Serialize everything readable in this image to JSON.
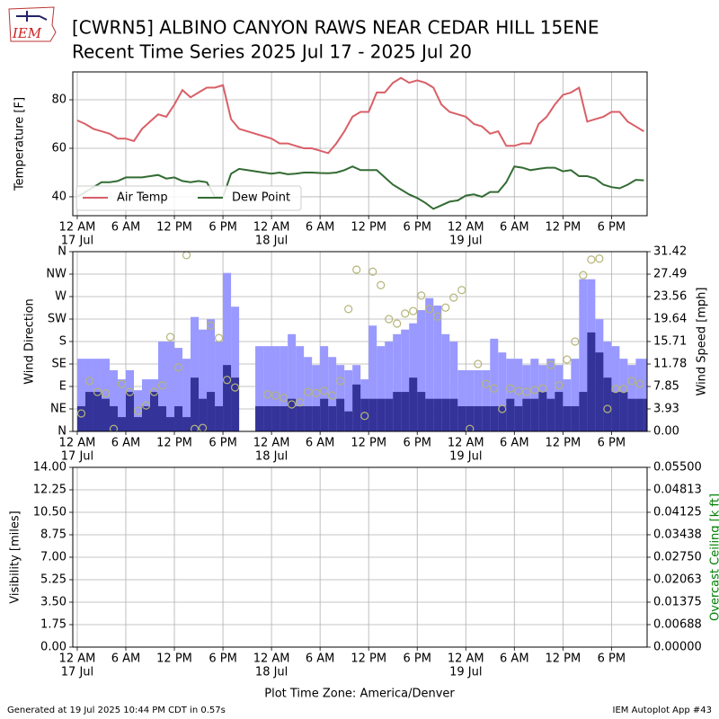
{
  "header": {
    "logo": "IEM"
  },
  "footer": {
    "generated": "Generated at 19 Jul 2025 10:44 PM CDT in 0.57s",
    "app": "IEM Autoplot App #43"
  },
  "x_axis_label": "Plot Time Zone: America/Denver",
  "chart_data": [
    {
      "type": "line",
      "title": "[CWRN5] ALBINO CANYON RAWS NEAR CEDAR HILL 15ENE",
      "subtitle": "Recent Time Series 2025 Jul 17 - 2025 Jul 20",
      "x": [
        "2025-07-17T00:00",
        "2025-07-17T01:00",
        "2025-07-17T02:00",
        "2025-07-17T03:00",
        "2025-07-17T04:00",
        "2025-07-17T05:00",
        "2025-07-17T06:00",
        "2025-07-17T07:00",
        "2025-07-17T08:00",
        "2025-07-17T09:00",
        "2025-07-17T10:00",
        "2025-07-17T11:00",
        "2025-07-17T12:00",
        "2025-07-17T13:00",
        "2025-07-17T14:00",
        "2025-07-17T15:00",
        "2025-07-17T16:00",
        "2025-07-17T17:00",
        "2025-07-17T18:00",
        "2025-07-17T19:00",
        "2025-07-17T20:00",
        "2025-07-17T21:00",
        "2025-07-17T22:00",
        "2025-07-17T23:00",
        "2025-07-18T00:00",
        "2025-07-18T01:00",
        "2025-07-18T02:00",
        "2025-07-18T03:00",
        "2025-07-18T04:00",
        "2025-07-18T05:00",
        "2025-07-18T06:00",
        "2025-07-18T07:00",
        "2025-07-18T08:00",
        "2025-07-18T09:00",
        "2025-07-18T10:00",
        "2025-07-18T11:00",
        "2025-07-18T12:00",
        "2025-07-18T13:00",
        "2025-07-18T14:00",
        "2025-07-18T15:00",
        "2025-07-18T16:00",
        "2025-07-18T17:00",
        "2025-07-18T18:00",
        "2025-07-18T19:00",
        "2025-07-18T20:00",
        "2025-07-18T21:00",
        "2025-07-18T22:00",
        "2025-07-18T23:00",
        "2025-07-19T00:00",
        "2025-07-19T01:00",
        "2025-07-19T02:00",
        "2025-07-19T03:00",
        "2025-07-19T04:00",
        "2025-07-19T05:00",
        "2025-07-19T06:00",
        "2025-07-19T07:00",
        "2025-07-19T08:00",
        "2025-07-19T09:00",
        "2025-07-19T10:00",
        "2025-07-19T11:00",
        "2025-07-19T12:00",
        "2025-07-19T13:00",
        "2025-07-19T14:00",
        "2025-07-19T15:00",
        "2025-07-19T16:00",
        "2025-07-19T17:00",
        "2025-07-19T18:00",
        "2025-07-19T19:00",
        "2025-07-19T20:00",
        "2025-07-19T21:00",
        "2025-07-19T22:00"
      ],
      "xlim": [
        "2025-07-16T23:27",
        "2025-07-19T22:24"
      ],
      "xticks": [
        {
          "value": "2025-07-17T00:00",
          "label": "12 AM"
        },
        {
          "value": "2025-07-17T06:00",
          "label": "6 AM"
        },
        {
          "value": "2025-07-17T12:00",
          "label": "12 PM"
        },
        {
          "value": "2025-07-17T18:00",
          "label": "6 PM"
        },
        {
          "value": "2025-07-18T00:00",
          "label": "12 AM"
        },
        {
          "value": "2025-07-18T06:00",
          "label": "6 AM"
        },
        {
          "value": "2025-07-18T12:00",
          "label": "12 PM"
        },
        {
          "value": "2025-07-18T18:00",
          "label": "6 PM"
        },
        {
          "value": "2025-07-19T00:00",
          "label": "12 AM"
        },
        {
          "value": "2025-07-19T06:00",
          "label": "6 AM"
        },
        {
          "value": "2025-07-19T12:00",
          "label": "12 PM"
        },
        {
          "value": "2025-07-19T18:00",
          "label": "6 PM"
        }
      ],
      "xtick_dates": [
        {
          "value": "2025-07-17T00:00",
          "label": "17 Jul"
        },
        {
          "value": "2025-07-18T00:00",
          "label": "18 Jul"
        },
        {
          "value": "2025-07-19T00:00",
          "label": "19 Jul"
        }
      ],
      "ylim": [
        32.2,
        91.5
      ],
      "yticks": [
        40,
        60,
        80
      ],
      "ylabel": "Temperature [F]",
      "grid": true,
      "legend": "lower left",
      "series": [
        {
          "name": "Air Temp",
          "color": "#d95f67",
          "values": [
            71.5,
            70,
            68,
            67,
            66,
            64,
            64,
            63,
            68,
            71,
            74,
            73,
            78,
            84,
            81,
            83,
            85,
            85,
            86,
            72,
            68,
            67,
            66,
            65,
            64,
            62,
            62,
            61,
            60,
            60,
            59,
            58,
            62,
            67,
            73,
            75,
            75,
            83,
            83,
            87,
            89,
            87,
            88,
            87,
            85,
            78,
            75,
            74,
            73,
            70,
            69,
            66,
            67,
            61,
            61,
            62,
            62,
            70,
            73,
            78,
            82,
            83,
            85,
            71,
            72,
            73,
            75,
            75,
            71,
            69,
            67
          ]
        },
        {
          "name": "Dew Point",
          "color": "#336b33",
          "values": [
            40,
            42,
            44,
            46,
            46,
            46.5,
            48,
            48,
            48,
            48.5,
            49,
            47.5,
            48,
            46.5,
            46,
            46.5,
            46,
            40,
            40,
            49.5,
            51.5,
            51,
            50.5,
            50,
            49.5,
            50,
            49.3,
            49.5,
            50,
            50,
            49.8,
            49.7,
            50,
            51,
            52.5,
            51,
            51,
            51,
            48,
            45,
            43,
            41,
            39.5,
            37.5,
            35,
            36.5,
            38,
            38.5,
            40.5,
            41,
            40,
            42,
            42,
            46,
            52.5,
            52,
            51,
            51.5,
            52,
            52,
            50.5,
            51,
            48.5,
            48.5,
            47.5,
            45,
            44,
            43.5,
            45,
            47,
            46.8
          ]
        }
      ]
    },
    {
      "type": "combo",
      "x": [
        "2025-07-17T00:00",
        "2025-07-17T01:00",
        "2025-07-17T02:00",
        "2025-07-17T03:00",
        "2025-07-17T04:00",
        "2025-07-17T05:00",
        "2025-07-17T06:00",
        "2025-07-17T07:00",
        "2025-07-17T08:00",
        "2025-07-17T09:00",
        "2025-07-17T10:00",
        "2025-07-17T11:00",
        "2025-07-17T12:00",
        "2025-07-17T13:00",
        "2025-07-17T14:00",
        "2025-07-17T15:00",
        "2025-07-17T16:00",
        "2025-07-17T17:00",
        "2025-07-17T18:00",
        "2025-07-17T19:00",
        "2025-07-17T20:00",
        "2025-07-17T21:00",
        "2025-07-17T22:00",
        "2025-07-17T23:00",
        "2025-07-18T00:00",
        "2025-07-18T01:00",
        "2025-07-18T02:00",
        "2025-07-18T03:00",
        "2025-07-18T04:00",
        "2025-07-18T05:00",
        "2025-07-18T06:00",
        "2025-07-18T07:00",
        "2025-07-18T08:00",
        "2025-07-18T09:00",
        "2025-07-18T10:00",
        "2025-07-18T11:00",
        "2025-07-18T12:00",
        "2025-07-18T13:00",
        "2025-07-18T14:00",
        "2025-07-18T15:00",
        "2025-07-18T16:00",
        "2025-07-18T17:00",
        "2025-07-18T18:00",
        "2025-07-18T19:00",
        "2025-07-18T20:00",
        "2025-07-18T21:00",
        "2025-07-18T22:00",
        "2025-07-18T23:00",
        "2025-07-19T00:00",
        "2025-07-19T01:00",
        "2025-07-19T02:00",
        "2025-07-19T03:00",
        "2025-07-19T04:00",
        "2025-07-19T05:00",
        "2025-07-19T06:00",
        "2025-07-19T07:00",
        "2025-07-19T08:00",
        "2025-07-19T09:00",
        "2025-07-19T10:00",
        "2025-07-19T11:00",
        "2025-07-19T12:00",
        "2025-07-19T13:00",
        "2025-07-19T14:00",
        "2025-07-19T15:00",
        "2025-07-19T16:00",
        "2025-07-19T17:00",
        "2025-07-19T18:00",
        "2025-07-19T19:00",
        "2025-07-19T20:00",
        "2025-07-19T21:00",
        "2025-07-19T22:00"
      ],
      "xlim": [
        "2025-07-16T23:27",
        "2025-07-19T22:24"
      ],
      "xticks": [
        {
          "value": "2025-07-17T00:00",
          "label": "12 AM"
        },
        {
          "value": "2025-07-17T06:00",
          "label": "6 AM"
        },
        {
          "value": "2025-07-17T12:00",
          "label": "12 PM"
        },
        {
          "value": "2025-07-17T18:00",
          "label": "6 PM"
        },
        {
          "value": "2025-07-18T00:00",
          "label": "12 AM"
        },
        {
          "value": "2025-07-18T06:00",
          "label": "6 AM"
        },
        {
          "value": "2025-07-18T12:00",
          "label": "12 PM"
        },
        {
          "value": "2025-07-18T18:00",
          "label": "6 PM"
        },
        {
          "value": "2025-07-19T00:00",
          "label": "12 AM"
        },
        {
          "value": "2025-07-19T06:00",
          "label": "6 AM"
        },
        {
          "value": "2025-07-19T12:00",
          "label": "12 PM"
        },
        {
          "value": "2025-07-19T18:00",
          "label": "6 PM"
        }
      ],
      "xtick_dates": [
        {
          "value": "2025-07-17T00:00",
          "label": "17 Jul"
        },
        {
          "value": "2025-07-18T00:00",
          "label": "18 Jul"
        },
        {
          "value": "2025-07-19T00:00",
          "label": "19 Jul"
        }
      ],
      "ylim": [
        0,
        360
      ],
      "yticks": [
        {
          "value": 0,
          "label": "N"
        },
        {
          "value": 45,
          "label": "NE"
        },
        {
          "value": 90,
          "label": "E"
        },
        {
          "value": 135,
          "label": "SE"
        },
        {
          "value": 180,
          "label": "S"
        },
        {
          "value": 225,
          "label": "SW"
        },
        {
          "value": 270,
          "label": "W"
        },
        {
          "value": 315,
          "label": "NW"
        },
        {
          "value": 360,
          "label": "N"
        }
      ],
      "ylabel": "Wind Direction",
      "y2lim": [
        0,
        31.42
      ],
      "y2ticks": [
        {
          "value": 0,
          "label": "0.00"
        },
        3.93,
        7.85,
        11.78,
        15.71,
        19.64,
        23.56,
        27.49,
        31.42
      ],
      "y2label": "Wind Speed [mph]",
      "grid": true,
      "series": [
        {
          "kind": "bar",
          "axis": "y2",
          "color": "#9999ff",
          "values": [
            12.7,
            12.7,
            12.7,
            12.7,
            10.7,
            9.1,
            10.7,
            7.2,
            9.1,
            9.1,
            15.7,
            15.7,
            14.6,
            12.7,
            20.0,
            17.8,
            19.6,
            15.7,
            27.7,
            21.8,
            null,
            null,
            14.9,
            14.9,
            14.9,
            14.9,
            17.0,
            14.9,
            13.0,
            11.6,
            14.9,
            13.0,
            11.6,
            10.7,
            11.6,
            9.1,
            18.5,
            14.9,
            15.7,
            17.0,
            17.8,
            18.9,
            21.2,
            23.3,
            22.0,
            17.0,
            15.7,
            10.7,
            10.7,
            10.7,
            10.7,
            16.2,
            13.8,
            12.7,
            12.7,
            11.6,
            12.7,
            11.6,
            12.7,
            11.6,
            9.1,
            12.7,
            26.6,
            26.6,
            19.6,
            15.7,
            14.9,
            12.7,
            11.6,
            12.7,
            12.7
          ]
        },
        {
          "kind": "bar",
          "axis": "y2",
          "color": "#333399",
          "values": [
            4.4,
            6.9,
            6.9,
            5.7,
            4.4,
            2.5,
            6.9,
            2.5,
            4.4,
            6.9,
            4.4,
            2.5,
            4.4,
            2.5,
            9.4,
            5.7,
            6.9,
            4.4,
            11.6,
            9.4,
            null,
            null,
            4.4,
            4.4,
            4.4,
            4.4,
            5.7,
            4.4,
            4.4,
            4.4,
            5.7,
            4.4,
            5.7,
            3.5,
            8.2,
            5.7,
            5.7,
            5.7,
            5.7,
            6.9,
            6.9,
            9.4,
            6.9,
            5.7,
            5.7,
            5.7,
            5.7,
            4.4,
            4.4,
            4.4,
            4.4,
            4.4,
            4.4,
            5.7,
            4.4,
            5.7,
            5.7,
            6.9,
            5.7,
            6.9,
            4.4,
            4.4,
            6.9,
            17.3,
            13.8,
            9.4,
            6.9,
            6.9,
            5.7,
            5.7,
            5.7
          ]
        },
        {
          "kind": "scatter",
          "axis": "y",
          "color": "#b5b57a",
          "values": [
            36,
            101,
            79,
            76,
            5,
            95,
            79,
            41,
            52,
            79,
            92,
            189,
            128,
            353,
            5,
            7,
            212,
            187,
            103,
            88,
            null,
            null,
            null,
            74,
            72,
            67,
            54,
            58,
            79,
            77,
            81,
            72,
            101,
            245,
            324,
            31,
            320,
            293,
            225,
            216,
            236,
            241,
            272,
            245,
            230,
            248,
            268,
            283,
            5,
            135,
            95,
            86,
            45,
            86,
            81,
            79,
            83,
            86,
            133,
            92,
            144,
            180,
            313,
            344,
            346,
            45,
            85,
            85,
            101,
            95,
            null
          ]
        }
      ]
    },
    {
      "type": "line",
      "x": [],
      "xlim": [
        "2025-07-16T23:27",
        "2025-07-19T22:24"
      ],
      "xticks": [
        {
          "value": "2025-07-17T00:00",
          "label": "12 AM"
        },
        {
          "value": "2025-07-17T06:00",
          "label": "6 AM"
        },
        {
          "value": "2025-07-17T12:00",
          "label": "12 PM"
        },
        {
          "value": "2025-07-17T18:00",
          "label": "6 PM"
        },
        {
          "value": "2025-07-18T00:00",
          "label": "12 AM"
        },
        {
          "value": "2025-07-18T06:00",
          "label": "6 AM"
        },
        {
          "value": "2025-07-18T12:00",
          "label": "12 PM"
        },
        {
          "value": "2025-07-18T18:00",
          "label": "6 PM"
        },
        {
          "value": "2025-07-19T00:00",
          "label": "12 AM"
        },
        {
          "value": "2025-07-19T06:00",
          "label": "6 AM"
        },
        {
          "value": "2025-07-19T12:00",
          "label": "12 PM"
        },
        {
          "value": "2025-07-19T18:00",
          "label": "6 PM"
        }
      ],
      "xtick_dates": [
        {
          "value": "2025-07-17T00:00",
          "label": "17 Jul"
        },
        {
          "value": "2025-07-18T00:00",
          "label": "18 Jul"
        },
        {
          "value": "2025-07-19T00:00",
          "label": "19 Jul"
        }
      ],
      "ylim": [
        0,
        14
      ],
      "yticks": [
        {
          "value": 0,
          "label": "0.00"
        },
        1.75,
        {
          "value": 3.5,
          "label": "3.50"
        },
        5.25,
        {
          "value": 7,
          "label": "7.00"
        },
        8.75,
        {
          "value": 10.5,
          "label": "10.50"
        },
        12.25,
        {
          "value": 14,
          "label": "14.00"
        }
      ],
      "ylabel": "Visibility [miles]",
      "y2lim": [
        0,
        0.055
      ],
      "y2ticks": [
        {
          "value": 0,
          "label": "0.00000"
        },
        0.00688,
        0.01375,
        0.02063,
        {
          "value": 0.0275,
          "label": "0.02750"
        },
        0.03438,
        0.04125,
        0.04813,
        {
          "value": 0.055,
          "label": "0.05500"
        }
      ],
      "y2label": "Overcast Ceiling [k ft]",
      "y2label_color": "green",
      "grid": true,
      "series": []
    }
  ]
}
